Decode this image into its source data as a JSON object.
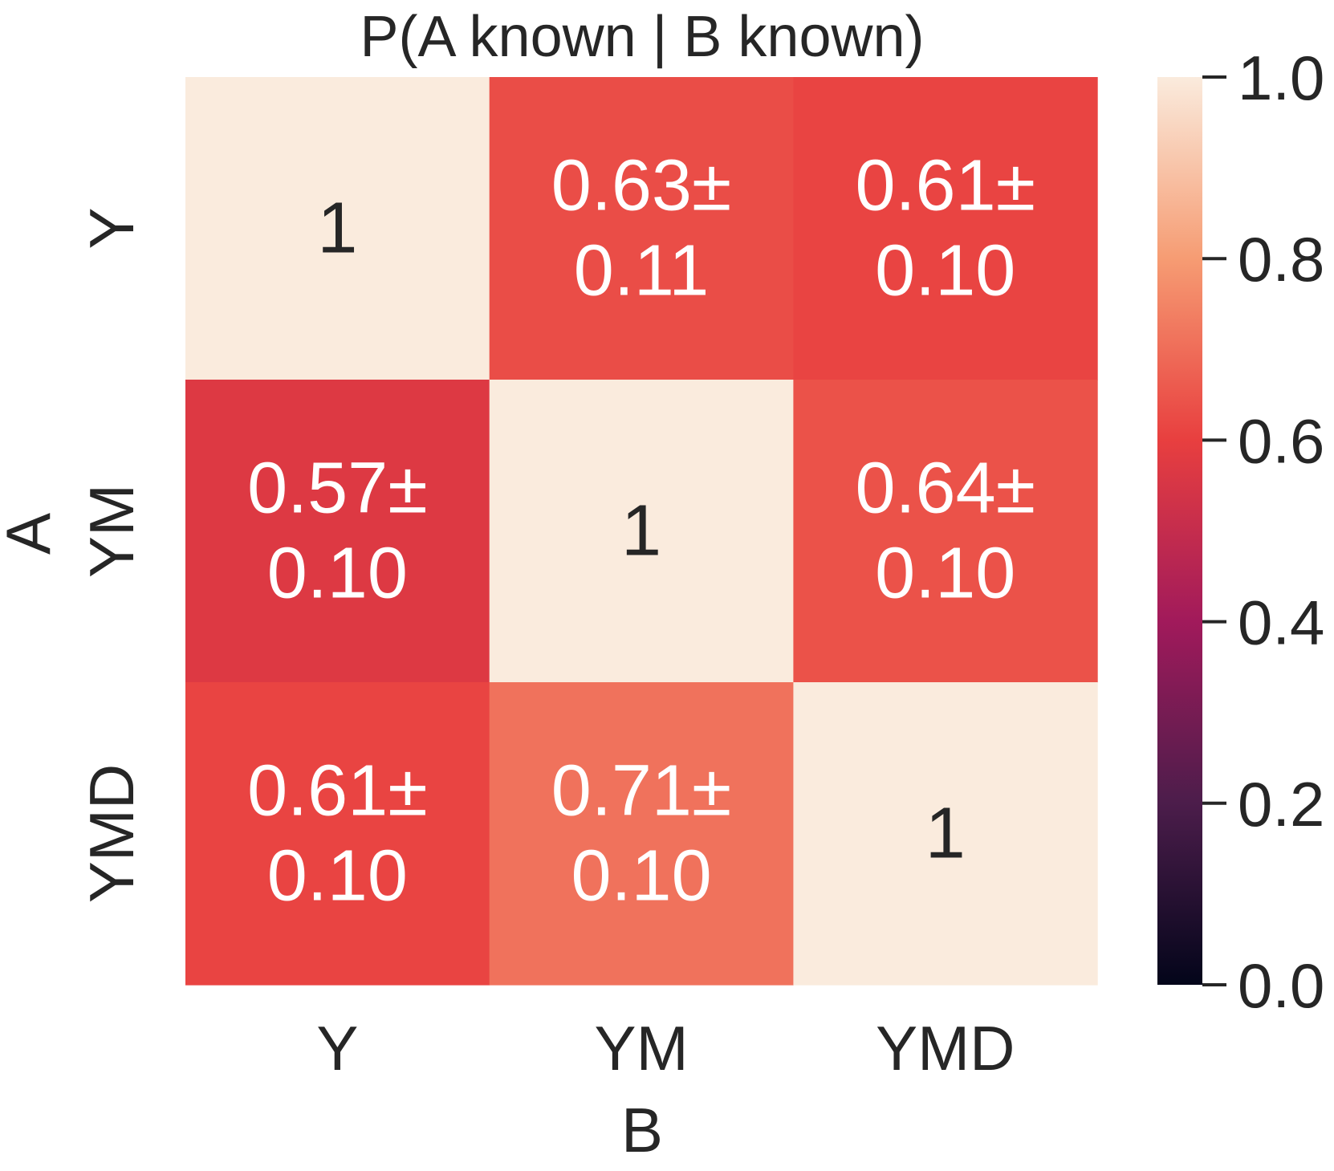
{
  "chart_data": {
    "type": "heatmap",
    "title": "P(A known | B known)",
    "xlabel": "B",
    "ylabel": "A",
    "x_categories": [
      "Y",
      "YM",
      "YMD"
    ],
    "y_categories": [
      "Y",
      "YM",
      "YMD"
    ],
    "values": [
      [
        1.0,
        0.63,
        0.61
      ],
      [
        0.57,
        1.0,
        0.64
      ],
      [
        0.61,
        0.71,
        1.0
      ]
    ],
    "cell_labels": [
      [
        [
          "1"
        ],
        [
          "0.63±",
          "0.11"
        ],
        [
          "0.61±",
          "0.10"
        ]
      ],
      [
        [
          "0.57±",
          "0.10"
        ],
        [
          "1"
        ],
        [
          "0.64±",
          "0.10"
        ]
      ],
      [
        [
          "0.61±",
          "0.10"
        ],
        [
          "0.71±",
          "0.10"
        ],
        [
          "1"
        ]
      ]
    ],
    "colormap": "rocket",
    "colormap_stops": [
      "#03051a",
      "#4c1d4b",
      "#a11a5b",
      "#e83f3f",
      "#f69c73",
      "#faebdd"
    ],
    "vmin": 0.0,
    "vmax": 1.0,
    "colorbar_ticks": [
      0.0,
      0.2,
      0.4,
      0.6,
      0.8,
      1.0
    ],
    "colorbar_tick_labels": [
      "0.0",
      "0.2",
      "0.4",
      "0.6",
      "0.8",
      "1.0"
    ]
  }
}
